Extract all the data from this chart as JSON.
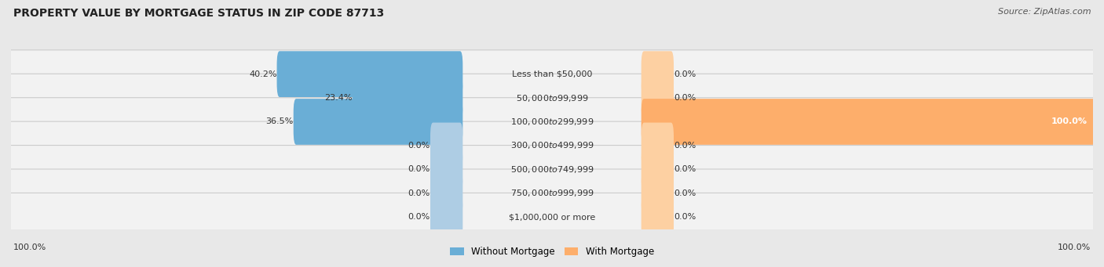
{
  "title": "PROPERTY VALUE BY MORTGAGE STATUS IN ZIP CODE 87713",
  "source": "Source: ZipAtlas.com",
  "categories": [
    "Less than $50,000",
    "$50,000 to $99,999",
    "$100,000 to $299,999",
    "$300,000 to $499,999",
    "$500,000 to $749,999",
    "$750,000 to $999,999",
    "$1,000,000 or more"
  ],
  "without_mortgage": [
    40.2,
    23.4,
    36.5,
    0.0,
    0.0,
    0.0,
    0.0
  ],
  "with_mortgage": [
    0.0,
    0.0,
    100.0,
    0.0,
    0.0,
    0.0,
    0.0
  ],
  "color_without": "#6aaed6",
  "color_with": "#fdae6b",
  "color_without_zero": "#aecde4",
  "color_with_zero": "#fdd0a2",
  "bg_color": "#e8e8e8",
  "row_bg_color": "#f2f2f2",
  "title_color": "#222222",
  "source_color": "#555555",
  "label_left_pct": "100.0%",
  "label_right_pct": "100.0%",
  "legend_without": "Without Mortgage",
  "legend_with": "With Mortgage",
  "max_val": 100.0
}
